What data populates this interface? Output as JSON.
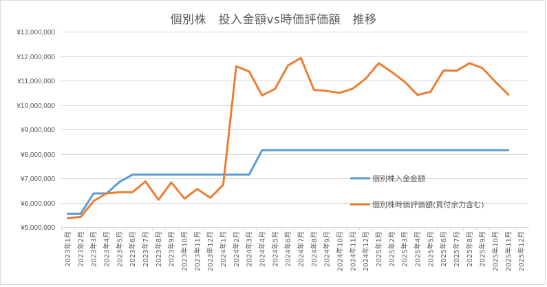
{
  "chart_data": {
    "type": "line",
    "title": "個別株　投入金額vs時価評価額　推移",
    "xlabel": "",
    "ylabel": "",
    "ylim": [
      5000000,
      13000000
    ],
    "y_ticks": [
      5000000,
      6000000,
      7000000,
      8000000,
      9000000,
      10000000,
      11000000,
      12000000,
      13000000
    ],
    "y_tick_labels": [
      "¥5,000,000",
      "¥6,000,000",
      "¥7,000,000",
      "¥8,000,000",
      "¥9,000,000",
      "¥10,000,000",
      "¥11,000,000",
      "¥12,000,000",
      "¥13,000,000"
    ],
    "grid": true,
    "legend_position": "inside-right",
    "categories": [
      "2023年1月",
      "2023年2月",
      "2023年3月",
      "2023年4月",
      "2023年5月",
      "2023年6月",
      "2023年7月",
      "2023年8月",
      "2023年9月",
      "2023年10月",
      "2023年11月",
      "2023年12月",
      "2024年1月",
      "2024年2月",
      "2024年3月",
      "2024年4月",
      "2024年5月",
      "2024年6月",
      "2024年7月",
      "2024年8月",
      "2024年9月",
      "2024年10月",
      "2024年11月",
      "2024年12月",
      "2025年1月",
      "2025年2月",
      "2025年3月",
      "2025年4月",
      "2025年5月",
      "2025年6月",
      "2025年7月",
      "2025年8月",
      "2025年9月",
      "2025年10月",
      "2025年11月",
      "2025年12月"
    ],
    "series": [
      {
        "name": "個別株入金金額",
        "color": "#5B9BD5",
        "values": [
          5550000,
          5550000,
          6380000,
          6380000,
          6850000,
          7150000,
          7150000,
          7150000,
          7150000,
          7150000,
          7150000,
          7150000,
          7150000,
          7150000,
          7150000,
          8150000,
          8150000,
          8150000,
          8150000,
          8150000,
          8150000,
          8150000,
          8150000,
          8150000,
          8150000,
          8150000,
          8150000,
          8150000,
          8150000,
          8150000,
          8150000,
          8150000,
          8150000,
          8150000,
          8150000,
          null
        ]
      },
      {
        "name": "個別株時価評価額(買付余力含む)",
        "color": "#ED7D31",
        "values": [
          5370000,
          5410000,
          6070000,
          6380000,
          6430000,
          6430000,
          6870000,
          6120000,
          6830000,
          6170000,
          6560000,
          6200000,
          6730000,
          11580000,
          11370000,
          10390000,
          10660000,
          11620000,
          11920000,
          10620000,
          10570000,
          10500000,
          10670000,
          11080000,
          11710000,
          11350000,
          10950000,
          10410000,
          10540000,
          11410000,
          11400000,
          11710000,
          11510000,
          10950000,
          10420000,
          null
        ]
      }
    ]
  },
  "colors": {
    "grid": "#D9D9D9",
    "axis_text": "#595959",
    "border": "#D9D9D9"
  }
}
